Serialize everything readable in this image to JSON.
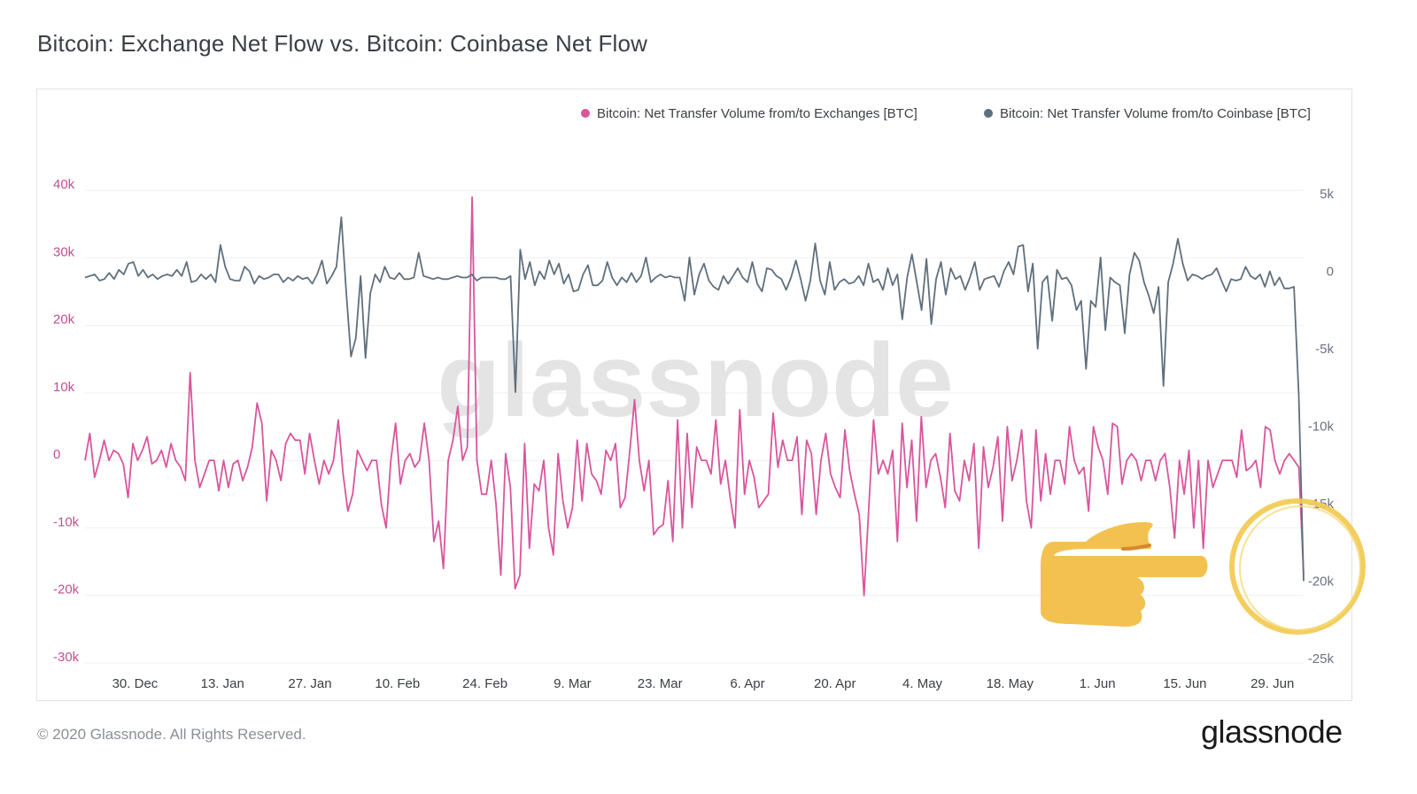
{
  "title": "Bitcoin: Exchange Net Flow vs. Bitcoin: Coinbase Net Flow",
  "footer": "© 2020 Glassnode. All Rights Reserved.",
  "brand": "glassnode",
  "watermark": "glassnode",
  "colors": {
    "exchange": "#d9559c",
    "coinbase": "#5f6f7c",
    "grid": "#eceff2",
    "left_axis": "#c2508e",
    "right_axis": "#6b7280",
    "annotation": "#f2c94c"
  },
  "chart_data": {
    "type": "line",
    "title": "Bitcoin: Exchange Net Flow vs. Bitcoin: Coinbase Net Flow",
    "legend_position": "top-right",
    "grid": true,
    "x_tick_labels": [
      "30. Dec",
      "13. Jan",
      "27. Jan",
      "10. Feb",
      "24. Feb",
      "9. Mar",
      "23. Mar",
      "6. Apr",
      "20. Apr",
      "4. May",
      "18. May",
      "1. Jun",
      "15. Jun",
      "29. Jun"
    ],
    "x_range_days": [
      0,
      195
    ],
    "x_tick_days": [
      8,
      22,
      36,
      50,
      64,
      78,
      92,
      106,
      120,
      134,
      148,
      162,
      176,
      190
    ],
    "left_axis": {
      "ticks": [
        40000,
        30000,
        20000,
        10000,
        0,
        -10000,
        -20000,
        -30000
      ],
      "labels": [
        "40k",
        "30k",
        "20k",
        "10k",
        "0",
        "-10k",
        "-20k",
        "-30k"
      ],
      "ylim": [
        -30000,
        40000
      ]
    },
    "right_axis": {
      "ticks": [
        5000,
        0,
        -5000,
        -10000,
        -15000,
        -20000,
        -25000
      ],
      "labels": [
        "5k",
        "0",
        "-5k",
        "-10k",
        "-15k",
        "-20k",
        "-25k"
      ],
      "ylim": [
        -25000,
        5000
      ]
    },
    "series": [
      {
        "name": "Bitcoin: Net Transfer Volume from/to Exchanges [BTC]",
        "axis": "left",
        "values": [
          0,
          4000,
          -2500,
          0,
          3000,
          0,
          1500,
          1000,
          -500,
          -5500,
          2500,
          0,
          1500,
          3500,
          -500,
          0,
          1500,
          -1000,
          2500,
          0,
          -1000,
          -3000,
          13000,
          0,
          -4000,
          -2000,
          0,
          0,
          -4500,
          0,
          -4000,
          -500,
          0,
          -3000,
          -1000,
          2000,
          8500,
          5500,
          -6000,
          1500,
          0,
          -3000,
          2500,
          4000,
          3000,
          3000,
          -2000,
          4000,
          0,
          -3500,
          0,
          -2000,
          0,
          6000,
          -2000,
          -7500,
          -5000,
          1500,
          0,
          -1500,
          0,
          0,
          -6500,
          -10000,
          0,
          5500,
          -3500,
          0,
          1000,
          -1000,
          0,
          5500,
          0,
          -12000,
          -9000,
          -16000,
          0,
          3000,
          8000,
          0,
          2000,
          39000,
          0,
          -5000,
          -5000,
          0,
          -6500,
          -17000,
          1000,
          -4000,
          -19000,
          -17000,
          2500,
          -13000,
          -3500,
          -4500,
          0,
          -10000,
          -14000,
          1000,
          -6000,
          -10000,
          -7000,
          3000,
          -6000,
          2500,
          -2000,
          -3000,
          -5000,
          1500,
          0,
          2500,
          -7000,
          -5500,
          1500,
          9000,
          0,
          -4500,
          0,
          -11000,
          -10000,
          -9500,
          -3000,
          -12000,
          6000,
          -10000,
          4000,
          -7000,
          2000,
          0,
          0,
          -2000,
          6000,
          -3500,
          0,
          -5500,
          -10000,
          7500,
          -5000,
          0,
          -2500,
          -7000,
          -6000,
          -5000,
          7000,
          -1000,
          3000,
          0,
          0,
          3500,
          -8000,
          3000,
          1000,
          -8000,
          0,
          4000,
          -2000,
          -4000,
          -5500,
          4500,
          -1500,
          -5000,
          -8000,
          -20000,
          -7000,
          6000,
          -2000,
          0,
          -2000,
          1500,
          -12000,
          5500,
          -4000,
          3000,
          -9000,
          6500,
          -4000,
          0,
          1000,
          -2500,
          -7000,
          4000,
          -4500,
          -6000,
          0,
          -3000,
          2500,
          -13000,
          2000,
          -4000,
          -1000,
          3500,
          -9000,
          5000,
          -3000,
          0,
          4500,
          -6000,
          -10000,
          4500,
          -6000,
          1000,
          -5000,
          0,
          0,
          -3500,
          5000,
          0,
          -2000,
          -1000,
          -7500,
          5000,
          2000,
          0,
          -5000,
          5500,
          5000,
          -3500,
          0,
          1000,
          0,
          -3000,
          0,
          0,
          -3000,
          0,
          1000,
          -4000,
          -11500,
          0,
          -5000,
          1500,
          -10000,
          0,
          -13000,
          0,
          -4000,
          -2000,
          0,
          0,
          0,
          -2500,
          4500,
          -1500,
          -1000,
          0,
          -4000,
          5000,
          4500,
          0,
          -2000,
          0,
          1000,
          0,
          -1000,
          -17000
        ]
      },
      {
        "name": "Bitcoin: Net Transfer Volume from/to Coinbase [BTC]",
        "axis": "right",
        "values": [
          -400,
          -300,
          -200,
          -600,
          -500,
          -100,
          -500,
          100,
          -200,
          500,
          600,
          -300,
          100,
          -400,
          -200,
          -500,
          -300,
          -200,
          -300,
          100,
          -300,
          600,
          -700,
          -600,
          -200,
          -500,
          -200,
          -700,
          1700,
          300,
          -500,
          -600,
          -600,
          300,
          0,
          -800,
          -300,
          -500,
          -400,
          -200,
          -200,
          -700,
          -400,
          -600,
          -300,
          -500,
          -400,
          -800,
          -200,
          700,
          -800,
          -300,
          300,
          3500,
          -1300,
          -5500,
          -4300,
          -300,
          -5600,
          -1400,
          -200,
          -700,
          300,
          -400,
          -500,
          -100,
          -500,
          -500,
          -400,
          1200,
          -300,
          -400,
          -500,
          -400,
          -500,
          -500,
          -400,
          -300,
          -400,
          -400,
          -200,
          -600,
          -400,
          -400,
          -400,
          -400,
          -500,
          -500,
          -300,
          -7800,
          1400,
          -500,
          600,
          -900,
          0,
          -500,
          700,
          -200,
          500,
          -800,
          -200,
          -1300,
          -1200,
          -200,
          400,
          -900,
          -900,
          -600,
          600,
          -400,
          -900,
          -400,
          -700,
          -100,
          -700,
          -300,
          900,
          -700,
          -400,
          -200,
          -400,
          -300,
          -400,
          -400,
          -1900,
          900,
          -1500,
          -200,
          500,
          -600,
          -1000,
          -1200,
          -300,
          -800,
          -300,
          200,
          -400,
          -700,
          600,
          -800,
          -1300,
          200,
          100,
          -300,
          -500,
          -1200,
          -400,
          700,
          -500,
          -1900,
          -600,
          1800,
          -600,
          -1500,
          600,
          -1200,
          -700,
          -500,
          -800,
          -700,
          -300,
          -900,
          500,
          -700,
          -500,
          -1200,
          200,
          -900,
          -200,
          -3100,
          -400,
          1100,
          -700,
          -2500,
          800,
          -3400,
          -500,
          600,
          -1500,
          200,
          -500,
          -300,
          -1200,
          -400,
          600,
          -1200,
          -500,
          -400,
          -300,
          -1000,
          0,
          600,
          -200,
          1600,
          1700,
          -1300,
          500,
          -5000,
          -700,
          -300,
          -3200,
          100,
          -500,
          -400,
          -900,
          -2500,
          -1900,
          -6300,
          -1900,
          -2300,
          900,
          -3800,
          -400,
          -700,
          -900,
          -4000,
          -200,
          1200,
          700,
          -700,
          -1600,
          -2700,
          -1000,
          -7400,
          -700,
          500,
          2100,
          500,
          -600,
          -200,
          -300,
          -500,
          -300,
          -200,
          200,
          -600,
          -1300,
          -500,
          -600,
          -500,
          300,
          -300,
          -500,
          -200,
          -1000,
          0,
          -900,
          -400,
          -1100,
          -1100,
          -1000,
          -8000,
          -20000
        ]
      }
    ]
  }
}
